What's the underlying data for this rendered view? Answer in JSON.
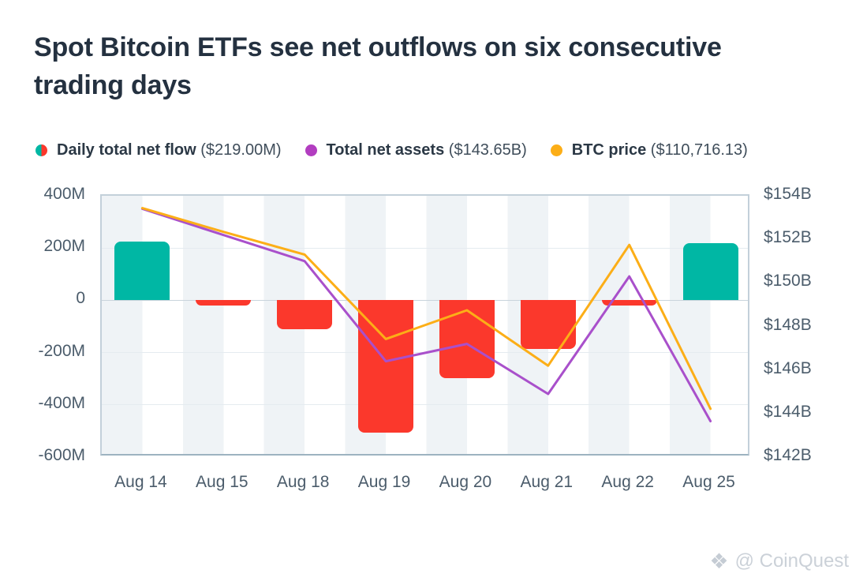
{
  "header": {
    "title_line1": "Spot Bitcoin ETFs see net outflows on six consecutive",
    "title_line2": "trading days"
  },
  "legend": [
    {
      "label": "Daily total net flow",
      "value": "($219.00M)",
      "swatch": "split-teal-red"
    },
    {
      "label": "Total net assets",
      "value": "($143.65B)",
      "swatch": "purple"
    },
    {
      "label": "BTC price",
      "value": "($110,716.13)",
      "swatch": "orange"
    }
  ],
  "watermark": {
    "icon": "diamond-logo",
    "text": "@ CoinQuest"
  },
  "colors": {
    "bar_positive": "#00b7a4",
    "bar_negative": "#fb382c",
    "assets_line": "#a950cb",
    "assets_dot": "#b23dc0",
    "btc_line": "#fcae17",
    "title_text": "#243140",
    "axis_text": "#4b5c6b"
  },
  "chart_data": {
    "type": "combo bar+line",
    "title": "Spot Bitcoin ETFs see net outflows on six consecutive trading days",
    "categories": [
      "Aug 14",
      "Aug 15",
      "Aug 18",
      "Aug 19",
      "Aug 20",
      "Aug 21",
      "Aug 22",
      "Aug 25"
    ],
    "series": [
      {
        "name": "Daily total net flow",
        "type": "bar",
        "axis": "left",
        "unit": "USD millions",
        "values": [
          225,
          -15,
          -110,
          -505,
          -298,
          -185,
          -20,
          219
        ],
        "current_label_value": "$219.00M"
      },
      {
        "name": "Total net assets",
        "type": "line",
        "axis": "right",
        "unit": "USD billions",
        "values": [
          153.4,
          152.2,
          151.0,
          146.4,
          147.2,
          144.9,
          150.3,
          143.65
        ],
        "current_label_value": "$143.65B"
      },
      {
        "name": "BTC price",
        "type": "line",
        "axis": "hidden",
        "unit": "USD",
        "values_plotted_on_left_axis_m": [
          353,
          262,
          175,
          -148,
          -38,
          -250,
          212,
          -415
        ],
        "current_label_value": "$110,716.13"
      }
    ],
    "left_axis": {
      "ticks": [
        "400M",
        "200M",
        "0",
        "-200M",
        "-400M",
        "-600M"
      ],
      "range_m": [
        -600,
        400
      ]
    },
    "right_axis": {
      "ticks": [
        "$154B",
        "$152B",
        "$150B",
        "$148B",
        "$146B",
        "$144B",
        "$142B"
      ],
      "range_b": [
        142,
        154
      ]
    },
    "grid": true,
    "background": "alternating vertical stripes per category",
    "legend_position": "top"
  }
}
